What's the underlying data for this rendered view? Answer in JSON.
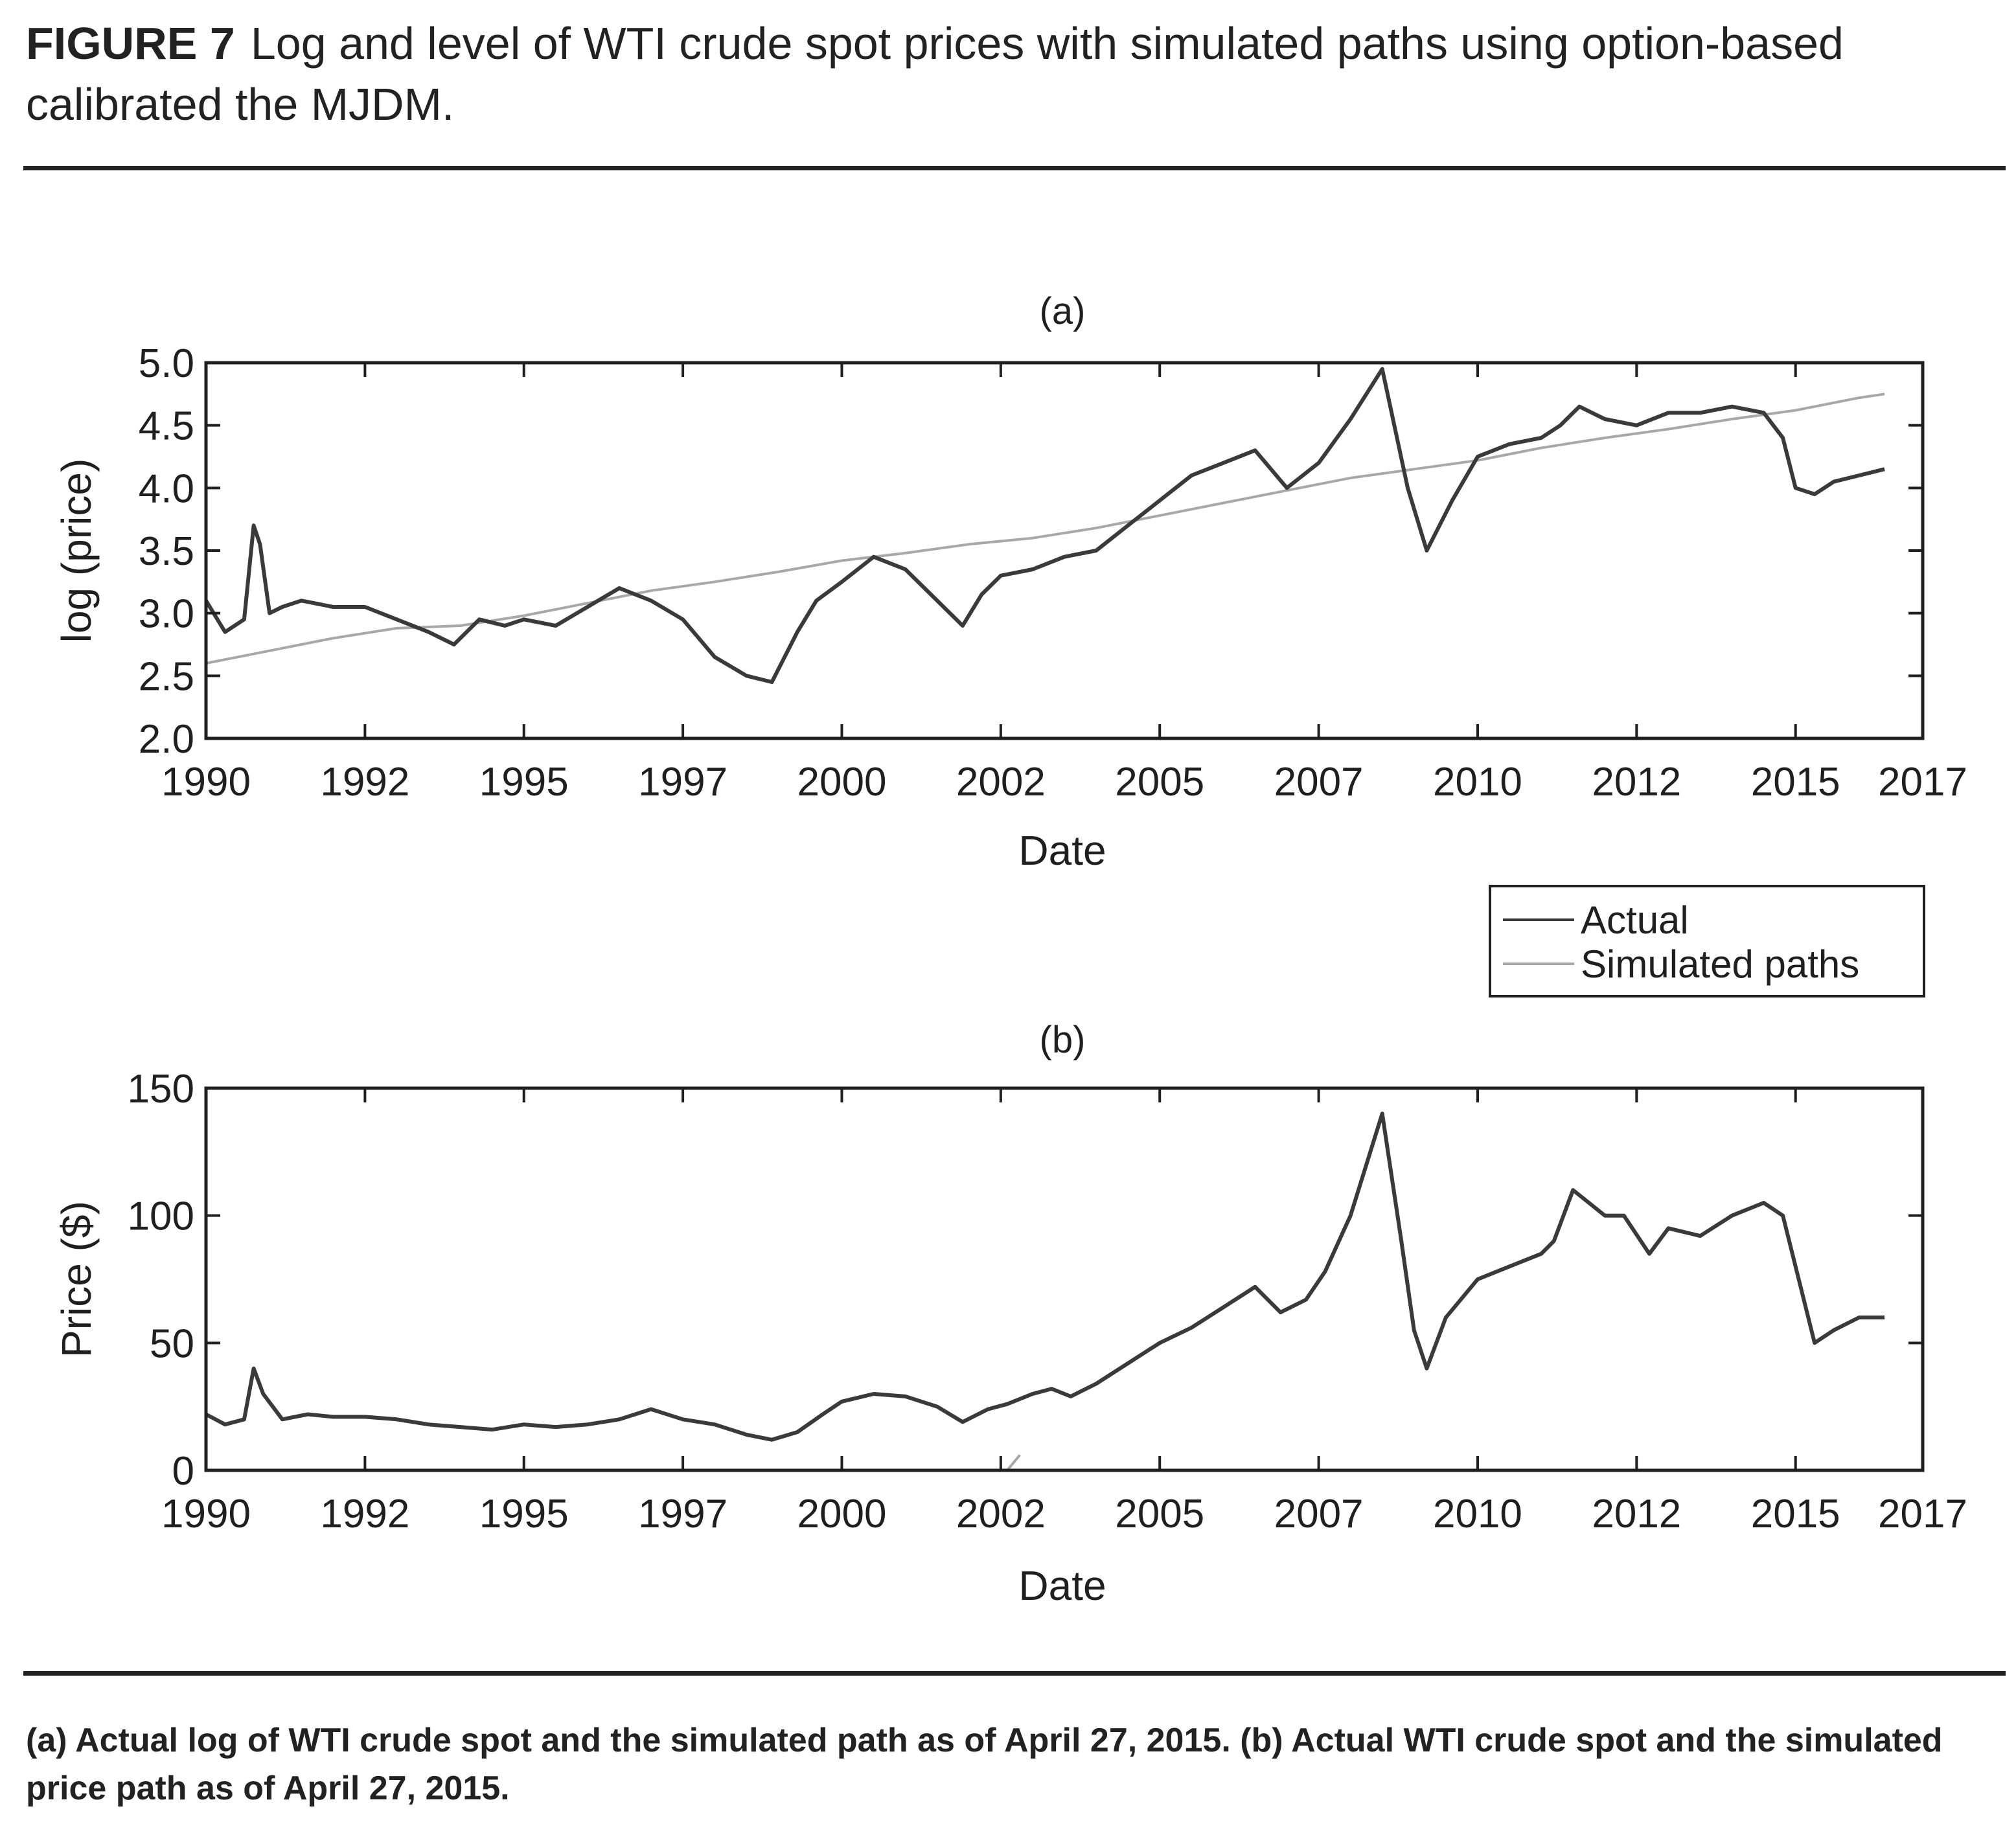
{
  "figure": {
    "label": "FIGURE 7",
    "title": "Log and level of WTI crude spot prices with simulated paths using option-based calibrated the MJDM.",
    "footnote": "(a) Actual log of WTI crude spot and the simulated path as of April 27, 2015. (b) Actual WTI crude spot and the simulated price path as of April 27, 2015."
  },
  "colors": {
    "actual": "#3a3a3a",
    "simulated": "#a8a8a8",
    "axis": "#1f1f1f"
  },
  "legend": {
    "actual": "Actual",
    "simulated": "Simulated paths",
    "placement": "top-right of panel (b)"
  },
  "chart_data": [
    {
      "id": "a",
      "type": "line",
      "title": "(a)",
      "xlabel": "Date",
      "ylabel": "log (price)",
      "xlim": [
        1990,
        2017
      ],
      "ylim": [
        2.0,
        5.0
      ],
      "xticks": [
        1990,
        1992.5,
        1995,
        1997.5,
        2000,
        2002.5,
        2005,
        2007.5,
        2010,
        2012.5,
        2015,
        2017
      ],
      "xtick_labels": [
        "1990",
        "1992",
        "1995",
        "1997",
        "2000",
        "2002",
        "2005",
        "2007",
        "2010",
        "2012",
        "2015",
        "2017"
      ],
      "yticks": [
        2.0,
        2.5,
        3.0,
        3.5,
        4.0,
        4.5,
        5.0
      ],
      "ytick_labels": [
        "2.0",
        "2.5",
        "3.0",
        "3.5",
        "4.0",
        "4.5",
        "5.0"
      ],
      "series": [
        {
          "name": "Actual",
          "x": [
            1990.0,
            1990.3,
            1990.6,
            1990.75,
            1990.85,
            1991.0,
            1991.2,
            1991.5,
            1992.0,
            1992.5,
            1993.0,
            1993.5,
            1993.9,
            1994.3,
            1994.7,
            1995.0,
            1995.5,
            1996.0,
            1996.5,
            1997.0,
            1997.5,
            1998.0,
            1998.5,
            1998.9,
            1999.3,
            1999.6,
            2000.0,
            2000.5,
            2001.0,
            2001.5,
            2001.9,
            2002.2,
            2002.5,
            2003.0,
            2003.5,
            2004.0,
            2004.5,
            2005.0,
            2005.5,
            2006.0,
            2006.5,
            2007.0,
            2007.5,
            2008.0,
            2008.5,
            2008.9,
            2009.2,
            2009.6,
            2010.0,
            2010.5,
            2011.0,
            2011.3,
            2011.6,
            2012.0,
            2012.5,
            2013.0,
            2013.5,
            2014.0,
            2014.5,
            2014.8,
            2015.0,
            2015.3,
            2015.6,
            2016.0,
            2016.4
          ],
          "y": [
            3.1,
            2.85,
            2.95,
            3.7,
            3.55,
            3.0,
            3.05,
            3.1,
            3.05,
            3.05,
            2.95,
            2.85,
            2.75,
            2.95,
            2.9,
            2.95,
            2.9,
            3.05,
            3.2,
            3.1,
            2.95,
            2.65,
            2.5,
            2.45,
            2.85,
            3.1,
            3.25,
            3.45,
            3.35,
            3.1,
            2.9,
            3.15,
            3.3,
            3.35,
            3.45,
            3.5,
            3.7,
            3.9,
            4.1,
            4.2,
            4.3,
            4.0,
            4.2,
            4.55,
            4.95,
            4.0,
            3.5,
            3.9,
            4.25,
            4.35,
            4.4,
            4.5,
            4.65,
            4.55,
            4.5,
            4.6,
            4.6,
            4.65,
            4.6,
            4.4,
            4.0,
            3.95,
            4.05,
            4.1,
            4.15
          ]
        },
        {
          "name": "Simulated paths",
          "x": [
            1990.0,
            1991.0,
            1992.0,
            1993.0,
            1994.0,
            1995.0,
            1996.0,
            1997.0,
            1998.0,
            1999.0,
            2000.0,
            2001.0,
            2002.0,
            2003.0,
            2004.0,
            2005.0,
            2006.0,
            2007.0,
            2008.0,
            2009.0,
            2010.0,
            2011.0,
            2012.0,
            2013.0,
            2014.0,
            2015.0,
            2016.0,
            2016.4
          ],
          "y": [
            2.6,
            2.7,
            2.8,
            2.88,
            2.9,
            2.98,
            3.08,
            3.18,
            3.25,
            3.33,
            3.42,
            3.48,
            3.55,
            3.6,
            3.68,
            3.78,
            3.88,
            3.98,
            4.08,
            4.15,
            4.22,
            4.32,
            4.4,
            4.47,
            4.55,
            4.62,
            4.72,
            4.75
          ]
        }
      ]
    },
    {
      "id": "b",
      "type": "line",
      "title": "(b)",
      "xlabel": "Date",
      "ylabel": "Price ($)",
      "xlim": [
        1990,
        2017
      ],
      "ylim": [
        0,
        150
      ],
      "xticks": [
        1990,
        1992.5,
        1995,
        1997.5,
        2000,
        2002.5,
        2005,
        2007.5,
        2010,
        2012.5,
        2015,
        2017
      ],
      "xtick_labels": [
        "1990",
        "1992",
        "1995",
        "1997",
        "2000",
        "2002",
        "2005",
        "2007",
        "2010",
        "2012",
        "2015",
        "2017"
      ],
      "yticks": [
        0,
        50,
        100,
        150
      ],
      "ytick_labels": [
        "0",
        "50",
        "100",
        "150"
      ],
      "series": [
        {
          "name": "Actual",
          "x": [
            1990.0,
            1990.3,
            1990.6,
            1990.75,
            1990.9,
            1991.2,
            1991.6,
            1992.0,
            1992.5,
            1993.0,
            1993.5,
            1994.0,
            1994.5,
            1995.0,
            1995.5,
            1996.0,
            1996.5,
            1997.0,
            1997.5,
            1998.0,
            1998.5,
            1998.9,
            1999.3,
            1999.7,
            2000.0,
            2000.5,
            2001.0,
            2001.5,
            2001.9,
            2002.3,
            2002.6,
            2003.0,
            2003.3,
            2003.6,
            2004.0,
            2004.5,
            2005.0,
            2005.5,
            2006.0,
            2006.5,
            2006.9,
            2007.3,
            2007.6,
            2008.0,
            2008.5,
            2008.8,
            2009.0,
            2009.2,
            2009.5,
            2010.0,
            2010.5,
            2011.0,
            2011.2,
            2011.5,
            2012.0,
            2012.3,
            2012.7,
            2013.0,
            2013.5,
            2014.0,
            2014.5,
            2014.8,
            2015.0,
            2015.3,
            2015.6,
            2016.0,
            2016.4
          ],
          "y": [
            22,
            18,
            20,
            40,
            30,
            20,
            22,
            21,
            21,
            20,
            18,
            17,
            16,
            18,
            17,
            18,
            20,
            24,
            20,
            18,
            14,
            12,
            15,
            22,
            27,
            30,
            29,
            25,
            19,
            24,
            26,
            30,
            32,
            29,
            34,
            42,
            50,
            56,
            64,
            72,
            62,
            67,
            78,
            100,
            140,
            90,
            55,
            40,
            60,
            75,
            80,
            85,
            90,
            110,
            100,
            100,
            85,
            95,
            92,
            100,
            105,
            100,
            80,
            50,
            55,
            60,
            60
          ]
        },
        {
          "name": "Simulated paths",
          "x": [
            2002.6,
            2002.8
          ],
          "y": [
            0,
            6
          ]
        }
      ]
    }
  ]
}
